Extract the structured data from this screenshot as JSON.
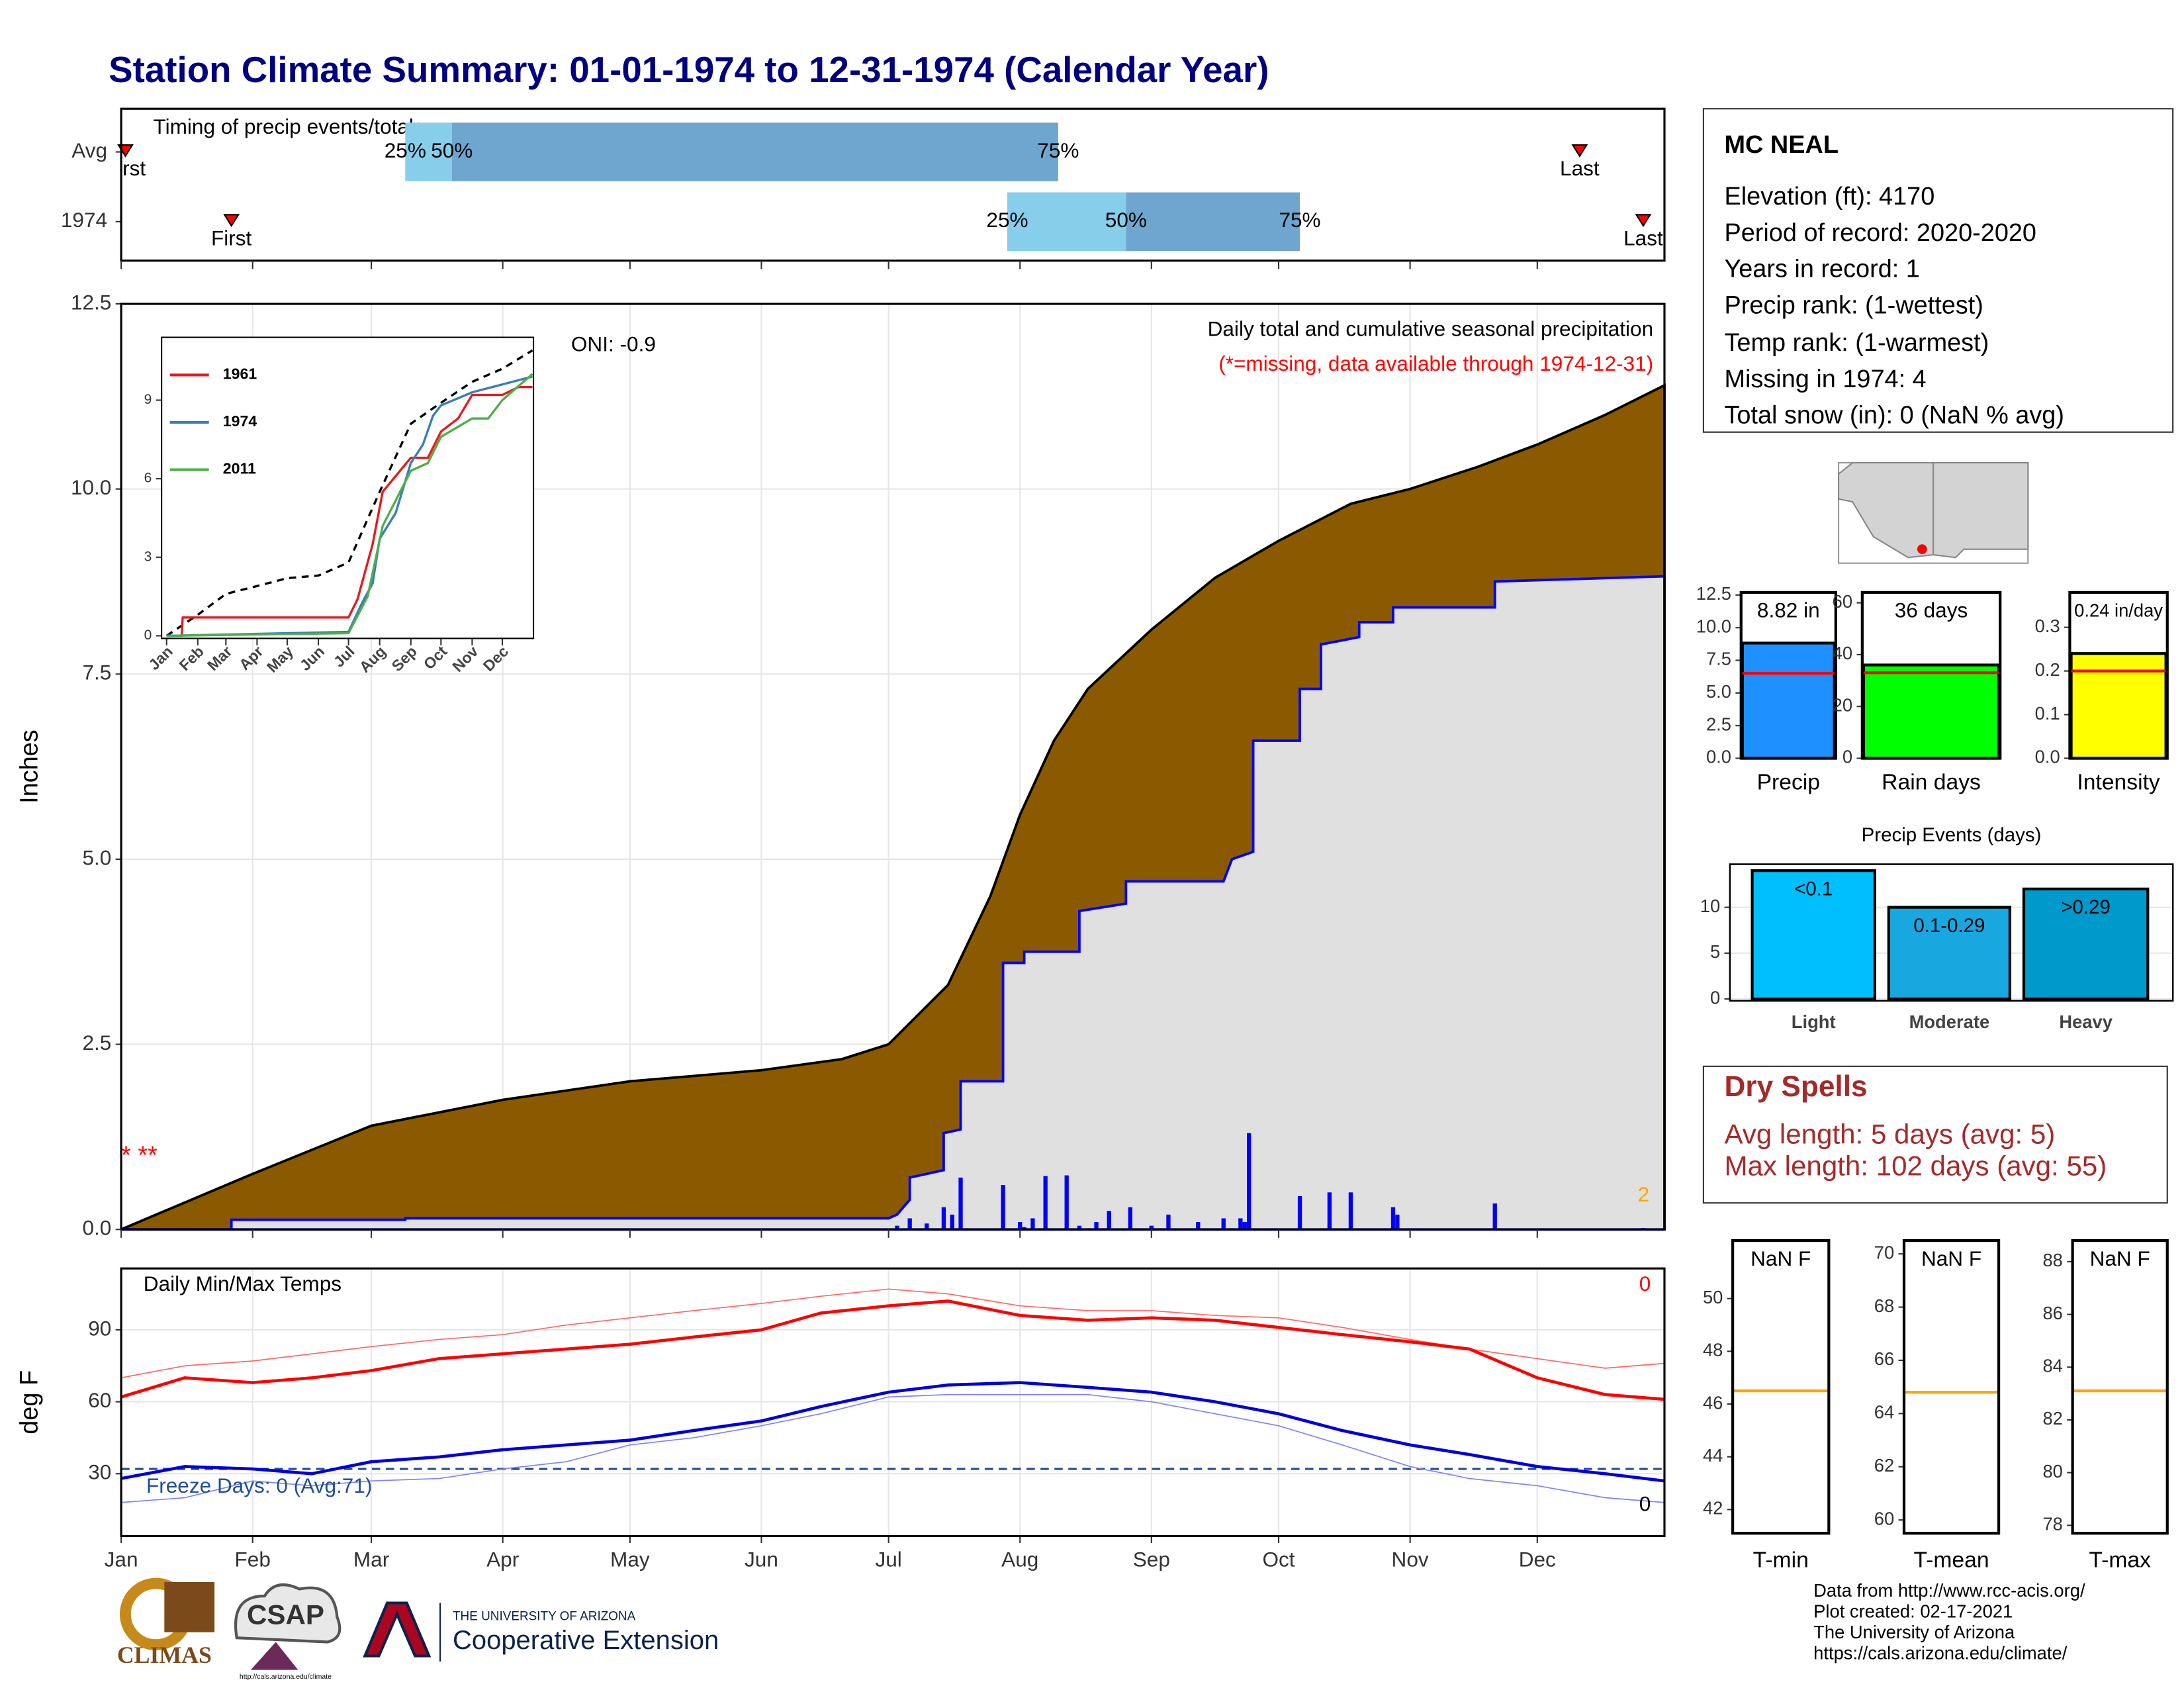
{
  "title": "Station Climate Summary: 01-01-1974 to 12-31-1974 (Calendar Year)",
  "station": {
    "name": "MC NEAL",
    "lines": [
      "Elevation (ft): 4170",
      "Period of record: 2020-2020",
      "Years in record: 1",
      "Precip rank:  (1-wettest)",
      "Temp rank:  (1-warmest)",
      "Missing in 1974: 4",
      "Total snow (in): 0 (NaN % avg)"
    ]
  },
  "dry_spells": {
    "title": "Dry Spells",
    "lines": [
      "Avg length: 5 days (avg: 5)",
      "Max length: 102 days (avg: 55)"
    ]
  },
  "footer": [
    "Data from http://www.rcc-acis.org/",
    "Plot created: 02-17-2021",
    "The University of Arizona",
    "https://cals.arizona.edu/climate/"
  ],
  "logos": {
    "climas": "CLIMAS",
    "csap": "CSAP",
    "csap_url": "http://cals.arizona.edu/climate",
    "ua": "THE UNIVERSITY OF ARIZONA",
    "coop": "Cooperative Extension"
  },
  "chart_data": [
    {
      "type": "timing",
      "title": "Timing of precip events/totals",
      "xlim": [
        0,
        364
      ],
      "labels": {
        "first": "First",
        "last": "Last",
        "q25": "25%",
        "q50": "50%",
        "q75": "75%"
      },
      "colors": [
        "#87ceeb",
        "#6ea6cf"
      ],
      "marker_color": "#ff0000",
      "rows": [
        {
          "name": "Avg",
          "first": 1,
          "q25": 67,
          "q50": 78,
          "q75": 221,
          "last": 344
        },
        {
          "name": 1974,
          "first": 26,
          "q25": 209,
          "q50": 237,
          "q75": 278,
          "last": 359
        }
      ]
    },
    {
      "type": "area",
      "ylabel": "Inches",
      "xlim": [
        0,
        364
      ],
      "ylim": [
        0,
        12.5
      ],
      "grid": true,
      "yticks": [
        {
          "value": 0,
          "label": "0.0"
        },
        2.5,
        {
          "value": 5,
          "label": "5.0"
        },
        7.5,
        {
          "value": 10,
          "label": "10.0"
        },
        12.5
      ],
      "annotations": [
        {
          "text": "ONI: -0.9"
        },
        {
          "text": "Daily total and cumulative seasonal precipitation"
        },
        {
          "text": "(*=missing, data available through 1974-12-31)",
          "color": "#ff0000"
        },
        {
          "text": 2,
          "color": "#ffa500"
        },
        {
          "text": "* **",
          "color": "#ff0000"
        }
      ],
      "series": [
        {
          "color": "#000000",
          "fill": "#8b5a00",
          "x": [
            0,
            31,
            59,
            90,
            120,
            151,
            170,
            181,
            195,
            205,
            212,
            220,
            228,
            243,
            258,
            273,
            290,
            304,
            320,
            334,
            350,
            364
          ],
          "values": [
            0,
            0.75,
            1.4,
            1.75,
            2.0,
            2.15,
            2.3,
            2.5,
            3.3,
            4.5,
            5.6,
            6.6,
            7.3,
            8.1,
            8.8,
            9.3,
            9.8,
            10.0,
            10.3,
            10.6,
            11.0,
            11.4
          ]
        },
        {
          "color": "#0000ff",
          "fill": "#e0e0e0",
          "x": [
            0,
            26,
            26,
            67,
            67,
            181,
            183,
            186,
            186,
            194,
            194,
            198,
            198,
            208,
            208,
            213,
            213,
            226,
            226,
            237,
            237,
            260,
            262,
            267,
            267,
            278,
            278,
            283,
            283,
            292,
            292,
            300,
            300,
            324,
            324,
            364
          ],
          "values": [
            0,
            0,
            0.13,
            0.13,
            0.15,
            0.15,
            0.2,
            0.4,
            0.7,
            0.8,
            1.3,
            1.35,
            2.0,
            2.0,
            3.6,
            3.6,
            3.75,
            3.75,
            4.3,
            4.4,
            4.7,
            4.7,
            5.0,
            5.1,
            6.6,
            6.6,
            7.3,
            7.3,
            7.9,
            8.0,
            8.2,
            8.2,
            8.4,
            8.4,
            8.75,
            8.82
          ]
        }
      ],
      "bars": {
        "color": "#0000ff",
        "x": [
          183,
          186,
          190,
          194,
          196,
          198,
          208,
          212,
          213,
          215,
          218,
          223,
          226,
          230,
          233,
          238,
          243,
          247,
          254,
          260,
          264,
          265,
          266,
          278,
          285,
          290,
          300,
          301,
          324,
          359
        ],
        "values": [
          0.05,
          0.15,
          0.08,
          0.3,
          0.2,
          0.7,
          0.6,
          0.1,
          0.03,
          0.15,
          0.72,
          0.73,
          0.05,
          0.1,
          0.25,
          0.3,
          0.05,
          0.2,
          0.1,
          0.15,
          0.15,
          0.1,
          1.3,
          0.45,
          0.5,
          0.5,
          0.3,
          0.2,
          0.35,
          0.02
        ]
      }
    },
    {
      "type": "line",
      "xlim": [
        -5,
        365
      ],
      "ylim": [
        -0.1,
        11.4
      ],
      "yticks": [
        0,
        3,
        6,
        9
      ],
      "xticks": [
        {
          "value": 0,
          "label": "Jan"
        },
        {
          "value": 31,
          "label": "Feb"
        },
        {
          "value": 59,
          "label": "Mar"
        },
        {
          "value": 90,
          "label": "Apr"
        },
        {
          "value": 120,
          "label": "May"
        },
        {
          "value": 151,
          "label": "Jun"
        },
        {
          "value": 181,
          "label": "Jul"
        },
        {
          "value": 212,
          "label": "Aug"
        },
        {
          "value": 243,
          "label": "Sep"
        },
        {
          "value": 273,
          "label": "Oct"
        },
        {
          "value": 304,
          "label": "Nov"
        },
        {
          "value": 334,
          "label": "Dec"
        }
      ],
      "series": [
        {
          "color": "#000000",
          "dash": true,
          "line_width": 1.6,
          "x": [
            0,
            31,
            59,
            90,
            120,
            151,
            181,
            212,
            243,
            273,
            304,
            334,
            364
          ],
          "values": [
            0,
            0.8,
            1.6,
            1.9,
            2.2,
            2.3,
            2.8,
            5.5,
            8.1,
            8.9,
            9.7,
            10.2,
            10.9
          ]
        },
        {
          "name": 1961,
          "color": "#e41a1c",
          "line_width": 1.6,
          "x": [
            0,
            15,
            16,
            181,
            190,
            205,
            215,
            243,
            260,
            273,
            290,
            304,
            334,
            350,
            364
          ],
          "values": [
            0,
            0,
            0.7,
            0.7,
            1.4,
            3.5,
            5.5,
            6.8,
            6.8,
            7.8,
            8.3,
            9.2,
            9.2,
            9.5,
            9.5
          ]
        },
        {
          "name": 1974,
          "color": "#377eb8",
          "line_width": 1.6,
          "x": [
            0,
            181,
            195,
            205,
            212,
            228,
            243,
            255,
            265,
            273,
            304,
            334,
            364
          ],
          "values": [
            0,
            0.15,
            1.3,
            2.0,
            3.7,
            4.7,
            6.6,
            7.3,
            8.4,
            8.8,
            9.3,
            9.6,
            9.9
          ]
        },
        {
          "name": 2011,
          "color": "#4daf4a",
          "line_width": 1.6,
          "x": [
            0,
            181,
            200,
            215,
            243,
            260,
            273,
            304,
            320,
            334,
            364
          ],
          "values": [
            0,
            0.1,
            1.5,
            4.2,
            6.3,
            6.6,
            7.6,
            8.3,
            8.3,
            9.0,
            10.0
          ]
        }
      ]
    },
    {
      "type": "line",
      "ylabel": "deg F",
      "xlim": [
        0,
        364
      ],
      "ylim": [
        4,
        115.6
      ],
      "yticks": [
        30,
        60,
        90
      ],
      "grid": true,
      "xticks": [
        {
          "value": 0,
          "label": "Jan"
        },
        {
          "value": 31,
          "label": "Feb"
        },
        {
          "value": 59,
          "label": "Mar"
        },
        {
          "value": 90,
          "label": "Apr"
        },
        {
          "value": 120,
          "label": "May"
        },
        {
          "value": 151,
          "label": "Jun"
        },
        {
          "value": 181,
          "label": "Jul"
        },
        {
          "value": 212,
          "label": "Aug"
        },
        {
          "value": 243,
          "label": "Sep"
        },
        {
          "value": 273,
          "label": "Oct"
        },
        {
          "value": 304,
          "label": "Nov"
        },
        {
          "value": 334,
          "label": "Dec"
        }
      ],
      "annotations": [
        {
          "text": "Daily Min/Max Temps"
        },
        {
          "text": 0,
          "color": "#ff0000"
        },
        {
          "text": 0
        },
        {
          "text": "Freeze Days: 0 (Avg:71)",
          "color": "#1f4e99"
        }
      ],
      "hlines": [
        {
          "value": 32,
          "color": "#1f4e99",
          "dash": true
        }
      ],
      "series": [
        {
          "color": "#ff6666",
          "line_width": 0.8,
          "x": [
            0,
            15,
            31,
            45,
            59,
            75,
            90,
            105,
            120,
            135,
            151,
            165,
            181,
            195,
            212,
            228,
            243,
            258,
            273,
            288,
            304,
            318,
            334,
            350,
            364
          ],
          "values": [
            70,
            75,
            77,
            80,
            83,
            86,
            88,
            92,
            95,
            98,
            101,
            104,
            107,
            105,
            100,
            98,
            98,
            96,
            95,
            91,
            86,
            82,
            78,
            74,
            76
          ]
        },
        {
          "color": "#8080ff",
          "line_width": 0.8,
          "x": [
            0,
            15,
            31,
            45,
            59,
            75,
            90,
            105,
            120,
            135,
            151,
            165,
            181,
            195,
            212,
            228,
            243,
            258,
            273,
            288,
            304,
            318,
            334,
            350,
            364
          ],
          "values": [
            18,
            20,
            27,
            25,
            27,
            28,
            32,
            35,
            42,
            45,
            50,
            55,
            62,
            63,
            63,
            63,
            60,
            55,
            50,
            42,
            33,
            28,
            25,
            20,
            18
          ]
        },
        {
          "color": "#ff0000",
          "line_width": 2.2,
          "x": [
            0,
            15,
            31,
            45,
            59,
            75,
            90,
            105,
            120,
            135,
            151,
            165,
            181,
            195,
            212,
            228,
            243,
            258,
            273,
            288,
            304,
            318,
            334,
            350,
            364
          ],
          "values": [
            62,
            70,
            68,
            70,
            73,
            78,
            80,
            82,
            84,
            87,
            90,
            97,
            100,
            102,
            96,
            94,
            95,
            94,
            91,
            88,
            85,
            82,
            70,
            63,
            61
          ]
        },
        {
          "color": "#0000dd",
          "line_width": 2.2,
          "x": [
            0,
            15,
            31,
            45,
            59,
            75,
            90,
            105,
            120,
            135,
            151,
            165,
            181,
            195,
            212,
            228,
            243,
            258,
            273,
            288,
            304,
            318,
            334,
            350,
            364
          ],
          "values": [
            28,
            33,
            32,
            30,
            35,
            37,
            40,
            42,
            44,
            48,
            52,
            58,
            64,
            67,
            68,
            66,
            64,
            60,
            55,
            48,
            42,
            38,
            33,
            30,
            27
          ]
        }
      ]
    },
    {
      "type": "bar",
      "categories": [
        "Precip"
      ],
      "values": [
        8.82
      ],
      "value_labels": [
        "8.82 in"
      ],
      "color": "#1e90ff",
      "avg": 6.5,
      "avg_color": "#ff0000",
      "ylim": [
        0,
        12.7
      ],
      "yticks": [
        {
          "value": 0,
          "label": "0.0"
        },
        2.5,
        {
          "value": 5,
          "label": "5.0"
        },
        7.5,
        {
          "value": 10,
          "label": "10.0"
        },
        12.5
      ]
    },
    {
      "type": "bar",
      "categories": [
        "Rain days"
      ],
      "values": [
        36
      ],
      "value_labels": [
        "36 days"
      ],
      "color": "#00ff00",
      "avg": 33,
      "avg_color": "#ff0000",
      "ylim": [
        0,
        64
      ],
      "yticks": [
        0,
        20,
        40,
        60
      ]
    },
    {
      "type": "bar",
      "categories": [
        "Intensity"
      ],
      "values": [
        0.24
      ],
      "value_labels": [
        "0.24 in/day"
      ],
      "color": "#ffff00",
      "avg": 0.2,
      "avg_color": "#ff0000",
      "ylim": [
        0,
        0.38
      ],
      "yticks": [
        {
          "value": 0,
          "label": "0.0"
        },
        0.1,
        0.2,
        0.3
      ]
    },
    {
      "type": "bar",
      "title": "Precip Events (days)",
      "categories": [
        "Light",
        "Moderate",
        "Heavy"
      ],
      "values": [
        14,
        10,
        12
      ],
      "bar_labels": [
        "<0.1",
        "0.1-0.29",
        ">0.29"
      ],
      "colors": [
        "#00bfff",
        "#19a7e0",
        "#0099cc"
      ],
      "grid": true,
      "ylim": [
        -0.2,
        14.7
      ],
      "yticks": [
        0,
        5,
        10
      ]
    },
    {
      "type": "bar",
      "categories": [
        "T-min"
      ],
      "values": [
        null
      ],
      "value_labels": [
        "NaN F"
      ],
      "avg": 46.5,
      "avg_color": "#ffa500",
      "ylim": [
        41.1,
        52.2
      ],
      "yticks": [
        42,
        44,
        46,
        48,
        50
      ]
    },
    {
      "type": "bar",
      "categories": [
        "T-mean"
      ],
      "values": [
        null
      ],
      "value_labels": [
        "NaN F"
      ],
      "avg": 64.8,
      "avg_color": "#ffa500",
      "ylim": [
        59.5,
        70.5
      ],
      "yticks": [
        60,
        62,
        64,
        66,
        68,
        70
      ]
    },
    {
      "type": "bar",
      "categories": [
        "T-max"
      ],
      "values": [
        null
      ],
      "value_labels": [
        "NaN F"
      ],
      "avg": 83.1,
      "avg_color": "#ffa500",
      "ylim": [
        77.7,
        88.8
      ],
      "yticks": [
        78,
        80,
        82,
        84,
        86,
        88
      ]
    }
  ]
}
